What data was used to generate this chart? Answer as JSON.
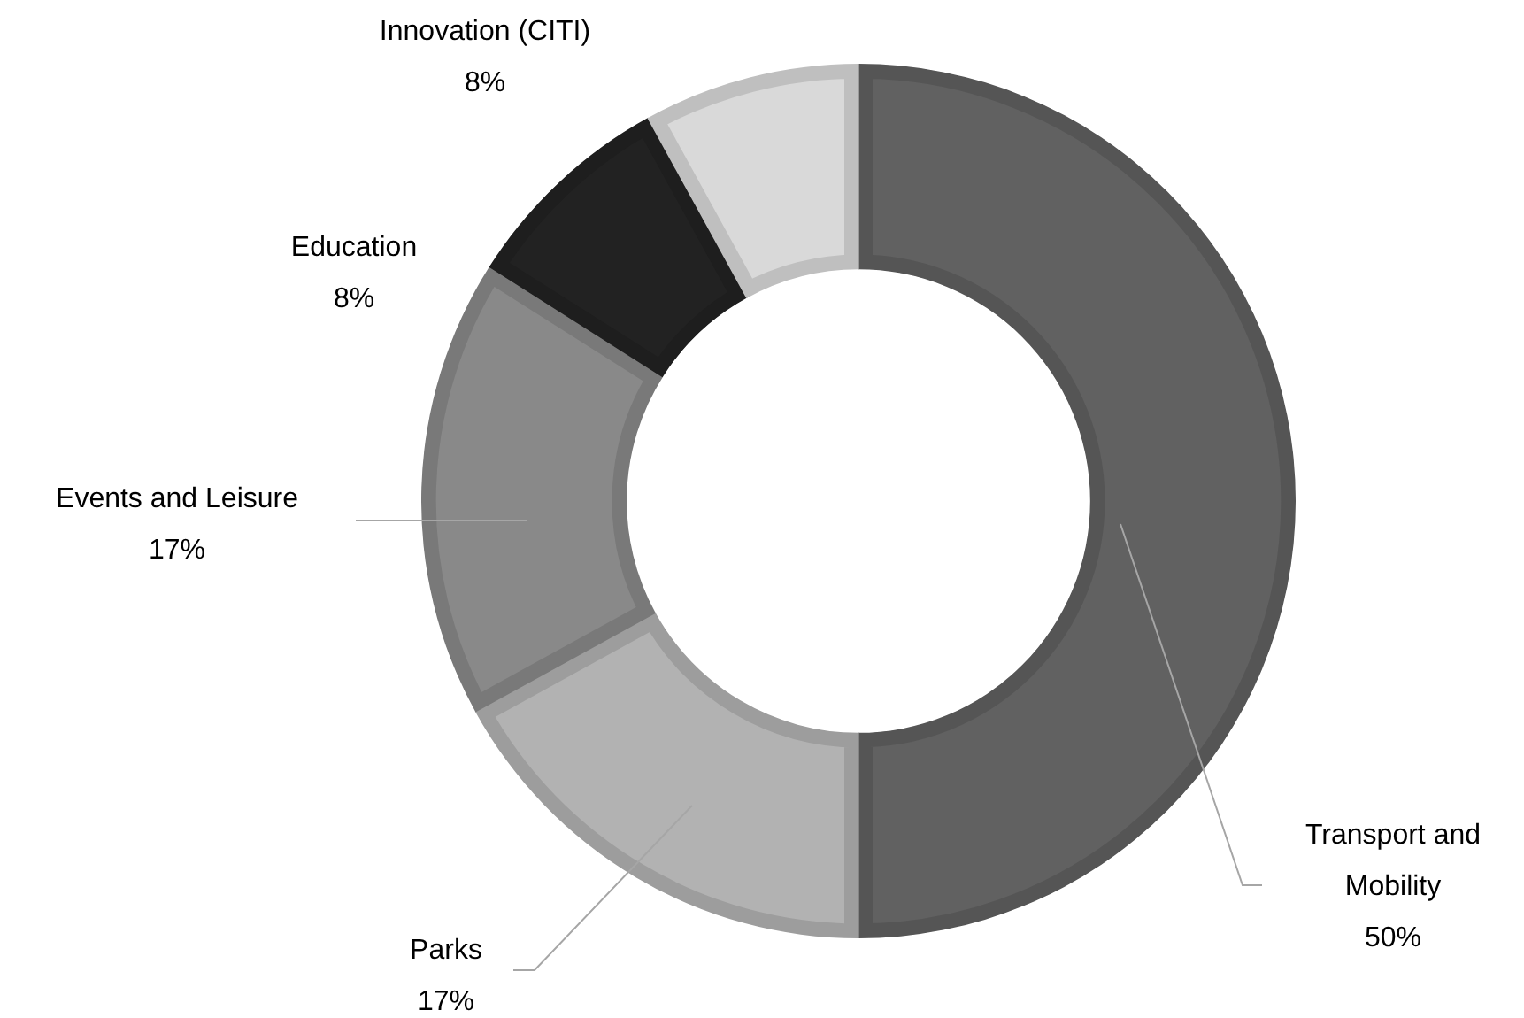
{
  "chart_data": {
    "type": "donut",
    "categories": [
      "Transport and Mobility",
      "Parks",
      "Events and Leisure",
      "Education",
      "Innovation (CITI)"
    ],
    "values": [
      50,
      17,
      17,
      8,
      8
    ],
    "value_labels": [
      "50%",
      "17%",
      "17%",
      "8%",
      "8%"
    ],
    "colors": [
      "#616161",
      "#b2b2b2",
      "#898989",
      "#222222",
      "#d9d9d9"
    ],
    "legend": false
  }
}
